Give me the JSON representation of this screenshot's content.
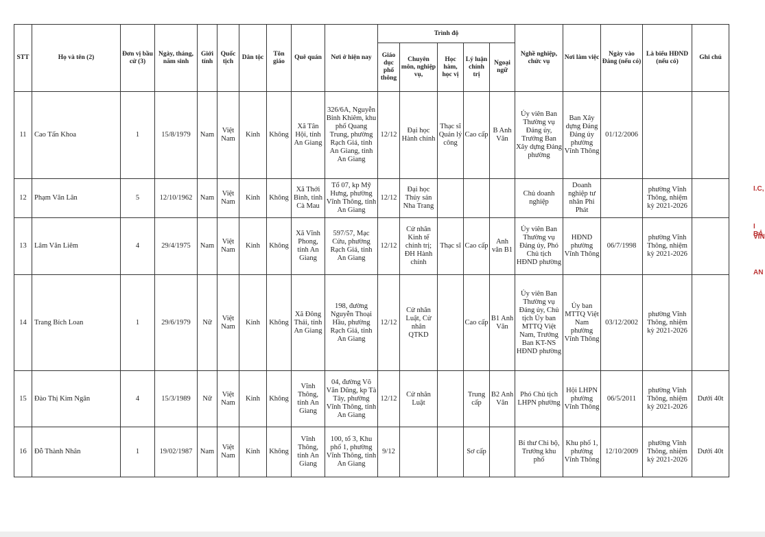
{
  "table": {
    "header": {
      "columns_before": [
        "STT",
        "Họ và tên (2)",
        "Đơn vị bầu cử (3)",
        "Ngày, tháng, năm sinh",
        "Giới tính",
        "Quốc tịch",
        "Dân tộc",
        "Tôn giáo",
        "Quê quán",
        "Nơi ở hiện nay"
      ],
      "group": {
        "title": "Trình độ",
        "columns": [
          "Giáo dục phổ thông",
          "Chuyên môn, nghiệp vụ,",
          "Học hàm, học vị",
          "Lý luận chính trị",
          "Ngoại ngữ"
        ]
      },
      "columns_after": [
        "Nghề nghiệp, chức vụ",
        "Nơi làm việc",
        "Ngày vào Đảng (nếu có)",
        "Là biểu HĐND (nếu có)",
        "Ghi chú"
      ]
    },
    "rows": [
      [
        "11",
        "Cao Tấn Khoa",
        "1",
        "15/8/1979",
        "Nam",
        "Việt Nam",
        "Kinh",
        "Không",
        "Xã Tân Hội, tỉnh An Giang",
        "326/6A, Nguyễn Bỉnh Khiêm, khu phố Quang Trung, phường Rạch Giá, tỉnh An Giang, tỉnh An Giang",
        "12/12",
        "Đại học Hành chính",
        "Thạc sĩ Quản lý công",
        "Cao cấp",
        "B Anh Văn",
        "Ủy viên Ban Thường vụ Đảng ủy, Trưởng Ban Xây dựng Đảng phường",
        "Ban Xây dựng Đảng Đảng ủy phường Vĩnh Thông",
        "01/12/2006",
        null,
        null
      ],
      [
        "12",
        "Phạm Văn Lân",
        "5",
        "12/10/1962",
        "Nam",
        "Việt Nam",
        "Kinh",
        "Không",
        "Xã Thới Bình, tỉnh Cà Mau",
        "Tổ 07, kp Mỹ Hưng, phường Vĩnh Thông, tỉnh An Giang",
        "12/12",
        "Đại học Thủy sản Nha Trang",
        null,
        null,
        null,
        "Chủ doanh nghiệp",
        "Doanh nghiệp tư nhân Phi Phát",
        null,
        "phường Vĩnh Thông, nhiệm kỳ 2021-2026",
        null
      ],
      [
        "13",
        "Lâm Văn Liêm",
        "4",
        "29/4/1975",
        "Nam",
        "Việt Nam",
        "Kinh",
        "Không",
        "Xã Vĩnh Phong, tỉnh An Giang",
        "597/57, Mạc Cửu, phường Rạch Giá, tỉnh An Giang",
        "12/12",
        "Cử nhân Kinh tế chính trị; ĐH Hành chính",
        "Thạc sĩ",
        "Cao cấp",
        "Anh văn B1",
        "Ủy viên Ban Thường vụ Đảng ủy, Phó Chủ tịch HĐND phường",
        "HĐND phường Vĩnh Thông",
        "06/7/1998",
        "phường Vĩnh Thông, nhiệm kỳ 2021-2026",
        null
      ],
      [
        "14",
        "Trang Bích Loan",
        "1",
        "29/6/1979",
        "Nữ",
        "Việt Nam",
        "Kinh",
        "Không",
        "Xã Đông Thái, tỉnh An Giang",
        "198, đường Nguyễn Thoại Hầu, phường Rạch Giá, tỉnh An Giang",
        "12/12",
        "Cử nhân Luật, Cử nhân QTKD",
        null,
        "Cao cấp",
        "B1 Anh Văn",
        "Ủy viên Ban Thường vụ Đảng ủy, Chủ tịch Ủy ban MTTQ Việt Nam, Trưởng Ban KT-NS HĐND phường",
        "Ủy ban MTTQ Việt Nam phường Vĩnh Thông",
        "03/12/2002",
        "phường Vĩnh Thông, nhiệm kỳ 2021-2026",
        null
      ],
      [
        "15",
        "Đào Thị Kim Ngân",
        "4",
        "15/3/1989",
        "Nữ",
        "Việt Nam",
        "Kinh",
        "Không",
        "Vĩnh Thông, tỉnh An Giang",
        "04, đường Võ Văn Dũng, kp Tà Tây, phường Vĩnh Thông, tỉnh An Giang",
        "12/12",
        "Cử nhân Luật",
        null,
        "Trung cấp",
        "B2 Anh Văn",
        "Phó Chủ tịch LHPN phường",
        "Hội LHPN phường Vĩnh Thông",
        "06/5/2011",
        "phường Vĩnh Thông, nhiệm kỳ 2021-2026",
        "Dưới 40t"
      ],
      [
        "16",
        "Đỗ Thành Nhân",
        "1",
        "19/02/1987",
        "Nam",
        "Việt Nam",
        "Kinh",
        "Không",
        "Vĩnh Thông, tỉnh An Giang",
        "100, tổ 3, Khu phố 1, phường Vĩnh Thông, tỉnh An Giang",
        "9/12",
        null,
        null,
        "Sơ cấp",
        null,
        "Bí thư Chi bộ, Trưởng khu phố",
        "Khu phố 1, phường Vĩnh Thông",
        "12/10/2009",
        "phường Vĩnh Thông, nhiệm kỳ 2021-2026",
        "Dưới 40t"
      ]
    ]
  },
  "edge_fragments": [
    "I.C,",
    "I BẢ",
    "VĨNH",
    "AN"
  ]
}
